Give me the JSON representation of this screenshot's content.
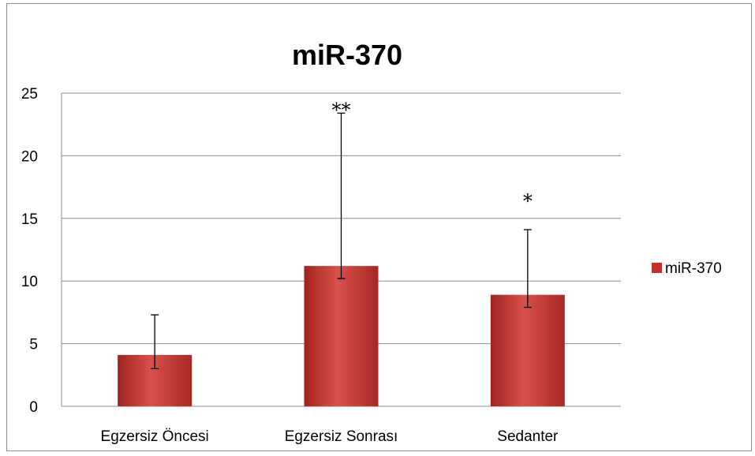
{
  "chart_data": {
    "type": "bar",
    "title": "miR-370",
    "xlabel": "",
    "ylabel": "",
    "ylim": [
      0,
      25
    ],
    "yticks": [
      0,
      5,
      10,
      15,
      20,
      25
    ],
    "grid": true,
    "legend_position": "right",
    "categories": [
      "Egzersiz Öncesi",
      "Egzersiz Sonrası",
      "Sedanter"
    ],
    "series": [
      {
        "name": "miR-370",
        "values": [
          4.1,
          11.2,
          8.9
        ],
        "error_upper": [
          3.2,
          12.2,
          5.2
        ],
        "error_lower": [
          1.1,
          1.0,
          1.0
        ],
        "color": "#c0302c"
      }
    ],
    "annotations": [
      "",
      "**",
      "*"
    ]
  }
}
